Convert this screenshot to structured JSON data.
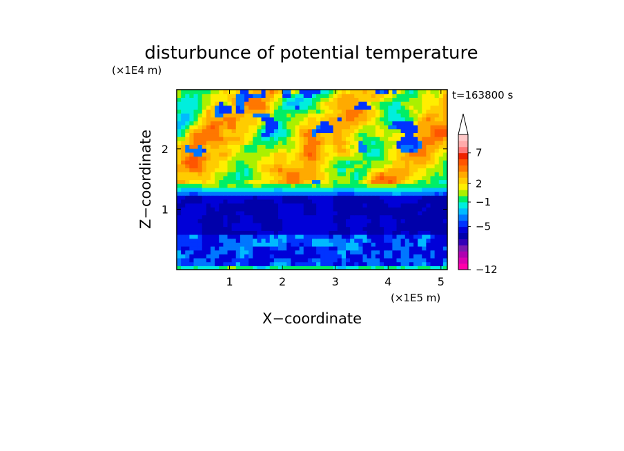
{
  "chart_data": {
    "type": "heatmap",
    "title": "disturbunce of potential temperature",
    "xlabel": "X−coordinate",
    "ylabel": "Z−coordinate",
    "x_unit": "(×1E5 m)",
    "y_unit": "(×1E4 m)",
    "time_label": "t=163800 s",
    "xlim": [
      0,
      5.12
    ],
    "ylim": [
      0,
      2.98
    ],
    "x_ticks": [
      1,
      2,
      3,
      4,
      5
    ],
    "y_ticks": [
      1,
      2
    ],
    "colorbar": {
      "levels": [
        -12,
        -11,
        -10,
        -9,
        -8,
        -7,
        -6,
        -5,
        -4,
        -3,
        -2,
        -1,
        0,
        1,
        2,
        3,
        4,
        5,
        6,
        7,
        8,
        9,
        10
      ],
      "colors": [
        "#ff00aa",
        "#d900b0",
        "#b000b0",
        "#7a18b0",
        "#3300b8",
        "#0000aa",
        "#0000d8",
        "#0033ff",
        "#0077ff",
        "#00bbff",
        "#00eedd",
        "#00ee66",
        "#aaf000",
        "#ffee00",
        "#ffcc00",
        "#ffaa00",
        "#ff7700",
        "#ff5500",
        "#ee2200",
        "#ff7777",
        "#ffaaaa",
        "#ffc8c8"
      ],
      "tick_labels": [
        "7",
        "2",
        "−1",
        "−5",
        "−12"
      ],
      "tick_values": [
        7,
        2,
        -1,
        -5,
        -12
      ],
      "extend": "max"
    },
    "bands": [
      {
        "z_range": [
          0.0,
          0.06
        ],
        "approx_value": -1
      },
      {
        "z_range": [
          0.06,
          0.6
        ],
        "approx_value": -3
      },
      {
        "z_range": [
          0.6,
          1.25
        ],
        "approx_value": -6
      },
      {
        "z_range": [
          1.25,
          1.4
        ],
        "approx_value": -2
      },
      {
        "z_range": [
          1.4,
          2.5
        ],
        "approx_value": 2
      },
      {
        "z_range": [
          2.5,
          2.98
        ],
        "approx_value": 2
      }
    ]
  }
}
